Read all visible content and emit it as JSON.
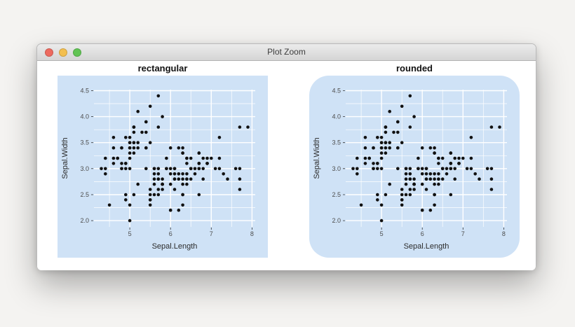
{
  "window": {
    "title": "Plot Zoom",
    "controls": [
      {
        "name": "close",
        "color": "#ed6a5f"
      },
      {
        "name": "minimize",
        "color": "#f3bf4f"
      },
      {
        "name": "zoom",
        "color": "#61c454"
      }
    ]
  },
  "chart_data": {
    "type": "scatter",
    "panels": [
      {
        "title": "rectangular",
        "corner_style": "rectangular"
      },
      {
        "title": "rounded",
        "corner_style": "rounded"
      }
    ],
    "xlabel": "Sepal.Length",
    "ylabel": "Sepal.Width",
    "xlim": [
      4.12,
      8.08
    ],
    "ylim": [
      1.88,
      4.52
    ],
    "xticks": [
      {
        "v": 5,
        "label": "5"
      },
      {
        "v": 6,
        "label": "6"
      },
      {
        "v": 7,
        "label": "7"
      },
      {
        "v": 8,
        "label": "8"
      }
    ],
    "yticks": [
      {
        "v": 2.0,
        "label": "2.0"
      },
      {
        "v": 2.5,
        "label": "2.5"
      },
      {
        "v": 3.0,
        "label": "3.0"
      },
      {
        "v": 3.5,
        "label": "3.5"
      },
      {
        "v": 4.0,
        "label": "4.0"
      },
      {
        "v": 4.5,
        "label": "4.5"
      }
    ],
    "x_minor": [
      4.5,
      5.5,
      6.5,
      7.5
    ],
    "y_minor": [
      2.25,
      2.75,
      3.25,
      3.75,
      4.25
    ],
    "grid": true,
    "legend": "none",
    "panel_fill": "#cfe2f6",
    "gridline_color": "#ffffff",
    "point_color": "#111111",
    "points": [
      [
        5.1,
        3.5
      ],
      [
        4.9,
        3.0
      ],
      [
        4.7,
        3.2
      ],
      [
        4.6,
        3.1
      ],
      [
        5.0,
        3.6
      ],
      [
        5.4,
        3.9
      ],
      [
        4.6,
        3.4
      ],
      [
        5.0,
        3.4
      ],
      [
        4.4,
        2.9
      ],
      [
        4.9,
        3.1
      ],
      [
        5.4,
        3.7
      ],
      [
        4.8,
        3.4
      ],
      [
        4.8,
        3.0
      ],
      [
        4.3,
        3.0
      ],
      [
        5.8,
        4.0
      ],
      [
        5.7,
        4.4
      ],
      [
        5.4,
        3.9
      ],
      [
        5.1,
        3.5
      ],
      [
        5.7,
        3.8
      ],
      [
        5.1,
        3.8
      ],
      [
        5.4,
        3.4
      ],
      [
        5.1,
        3.7
      ],
      [
        4.6,
        3.6
      ],
      [
        5.1,
        3.3
      ],
      [
        4.8,
        3.4
      ],
      [
        5.0,
        3.0
      ],
      [
        5.0,
        3.4
      ],
      [
        5.2,
        3.5
      ],
      [
        5.2,
        3.4
      ],
      [
        4.7,
        3.2
      ],
      [
        4.8,
        3.1
      ],
      [
        5.4,
        3.4
      ],
      [
        5.2,
        4.1
      ],
      [
        5.5,
        4.2
      ],
      [
        4.9,
        3.1
      ],
      [
        5.0,
        3.2
      ],
      [
        5.5,
        3.5
      ],
      [
        4.9,
        3.6
      ],
      [
        4.4,
        3.0
      ],
      [
        5.1,
        3.4
      ],
      [
        5.0,
        3.5
      ],
      [
        4.5,
        2.3
      ],
      [
        4.4,
        3.2
      ],
      [
        5.0,
        3.5
      ],
      [
        5.1,
        3.8
      ],
      [
        4.8,
        3.0
      ],
      [
        5.1,
        3.8
      ],
      [
        4.6,
        3.2
      ],
      [
        5.3,
        3.7
      ],
      [
        5.0,
        3.3
      ],
      [
        7.0,
        3.2
      ],
      [
        6.4,
        3.2
      ],
      [
        6.9,
        3.1
      ],
      [
        5.5,
        2.3
      ],
      [
        6.5,
        2.8
      ],
      [
        5.7,
        2.8
      ],
      [
        6.3,
        3.3
      ],
      [
        4.9,
        2.4
      ],
      [
        6.6,
        2.9
      ],
      [
        5.2,
        2.7
      ],
      [
        5.0,
        2.0
      ],
      [
        5.9,
        3.0
      ],
      [
        6.0,
        2.2
      ],
      [
        6.1,
        2.9
      ],
      [
        5.6,
        2.9
      ],
      [
        6.7,
        3.1
      ],
      [
        5.6,
        3.0
      ],
      [
        5.8,
        2.7
      ],
      [
        6.2,
        2.2
      ],
      [
        5.6,
        2.5
      ],
      [
        5.9,
        3.2
      ],
      [
        6.1,
        2.8
      ],
      [
        6.3,
        2.5
      ],
      [
        6.1,
        2.8
      ],
      [
        6.4,
        2.9
      ],
      [
        6.6,
        3.0
      ],
      [
        6.8,
        2.8
      ],
      [
        6.7,
        3.0
      ],
      [
        6.0,
        2.9
      ],
      [
        5.7,
        2.6
      ],
      [
        5.5,
        2.4
      ],
      [
        5.5,
        2.4
      ],
      [
        5.8,
        2.7
      ],
      [
        6.0,
        2.7
      ],
      [
        5.4,
        3.0
      ],
      [
        6.0,
        3.4
      ],
      [
        6.7,
        3.1
      ],
      [
        6.3,
        2.3
      ],
      [
        5.6,
        3.0
      ],
      [
        5.5,
        2.5
      ],
      [
        5.5,
        2.6
      ],
      [
        6.1,
        3.0
      ],
      [
        5.8,
        2.6
      ],
      [
        5.0,
        2.3
      ],
      [
        5.6,
        2.7
      ],
      [
        5.7,
        3.0
      ],
      [
        5.7,
        2.9
      ],
      [
        6.2,
        2.9
      ],
      [
        5.1,
        2.5
      ],
      [
        5.7,
        2.8
      ],
      [
        6.3,
        3.3
      ],
      [
        5.8,
        2.7
      ],
      [
        7.1,
        3.0
      ],
      [
        6.3,
        2.9
      ],
      [
        6.5,
        3.0
      ],
      [
        7.6,
        3.0
      ],
      [
        4.9,
        2.5
      ],
      [
        7.3,
        2.9
      ],
      [
        6.7,
        2.5
      ],
      [
        7.2,
        3.6
      ],
      [
        6.5,
        3.2
      ],
      [
        6.4,
        2.7
      ],
      [
        6.8,
        3.0
      ],
      [
        5.7,
        2.5
      ],
      [
        5.8,
        2.8
      ],
      [
        6.4,
        3.2
      ],
      [
        6.5,
        3.0
      ],
      [
        7.7,
        3.8
      ],
      [
        7.7,
        2.6
      ],
      [
        6.0,
        2.2
      ],
      [
        6.9,
        3.2
      ],
      [
        5.6,
        2.8
      ],
      [
        7.7,
        2.8
      ],
      [
        6.3,
        2.7
      ],
      [
        6.7,
        3.3
      ],
      [
        7.2,
        3.2
      ],
      [
        6.2,
        2.8
      ],
      [
        6.1,
        3.0
      ],
      [
        6.4,
        2.8
      ],
      [
        7.2,
        3.0
      ],
      [
        7.4,
        2.8
      ],
      [
        7.9,
        3.8
      ],
      [
        6.4,
        2.8
      ],
      [
        6.3,
        2.8
      ],
      [
        6.1,
        2.6
      ],
      [
        7.7,
        3.0
      ],
      [
        6.3,
        3.4
      ],
      [
        6.4,
        3.1
      ],
      [
        6.0,
        3.0
      ],
      [
        6.9,
        3.1
      ],
      [
        6.7,
        3.1
      ],
      [
        6.9,
        3.1
      ],
      [
        5.8,
        2.7
      ],
      [
        6.8,
        3.2
      ],
      [
        6.7,
        3.3
      ],
      [
        6.7,
        3.0
      ],
      [
        6.3,
        2.5
      ],
      [
        6.5,
        3.0
      ],
      [
        6.2,
        3.4
      ],
      [
        5.9,
        3.0
      ]
    ]
  }
}
